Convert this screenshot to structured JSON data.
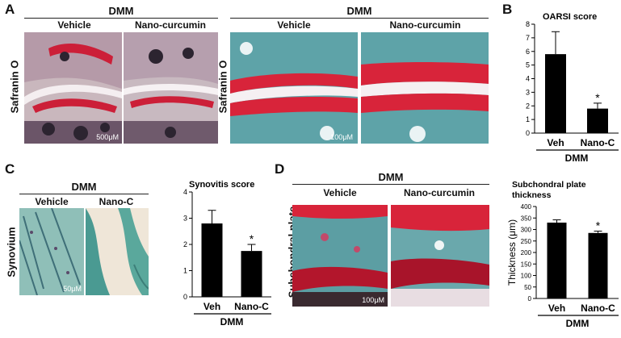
{
  "panels": {
    "A": {
      "letter": "A",
      "left_header": "DMM",
      "right_header": "DMM",
      "stain_label": "Safranin O",
      "vehicle": "Vehicle",
      "treatment": "Nano-curcumin",
      "scale_left": "500μM",
      "scale_right": "100μM"
    },
    "B": {
      "letter": "B"
    },
    "C": {
      "letter": "C",
      "header": "DMM",
      "tissue_label": "Synovium",
      "vehicle": "Vehicle",
      "treatment": "Nano-C",
      "scale": "50μM"
    },
    "D": {
      "letter": "D",
      "header": "DMM",
      "tissue_label": "Subchondral plate",
      "vehicle": "Vehicle",
      "treatment": "Nano-curcumin",
      "scale": "100μM"
    }
  },
  "colors": {
    "bar": "#000000",
    "cartilage_red": "#d8243a",
    "bone_teal": "#4f9aa0",
    "tissue_pink": "#e9dde0"
  },
  "chart_data": [
    {
      "type": "bar",
      "title": "OARSI score",
      "categories": [
        "Veh",
        "Nano-C"
      ],
      "values": [
        5.8,
        1.8
      ],
      "errors": [
        1.65,
        0.4
      ],
      "significance": [
        "",
        "*"
      ],
      "group_label": "DMM",
      "ylim": [
        0,
        8
      ],
      "yticks": [
        0,
        1,
        2,
        3,
        4,
        5,
        6,
        7,
        8
      ]
    },
    {
      "type": "bar",
      "title": "Synovitis score",
      "categories": [
        "Veh",
        "Nano-C"
      ],
      "values": [
        2.8,
        1.75
      ],
      "errors": [
        0.5,
        0.25
      ],
      "significance": [
        "",
        "*"
      ],
      "group_label": "DMM",
      "ylim": [
        0,
        4
      ],
      "yticks": [
        0,
        1,
        2,
        3,
        4
      ]
    },
    {
      "type": "bar",
      "title": "Subchondral plate thickness",
      "ylabel": "Thickness (μm)",
      "categories": [
        "Veh",
        "Nano-C"
      ],
      "values": [
        330,
        285
      ],
      "errors": [
        12,
        8
      ],
      "significance": [
        "",
        "*"
      ],
      "group_label": "DMM",
      "ylim": [
        0,
        400
      ],
      "yticks": [
        0,
        50,
        100,
        150,
        200,
        250,
        300,
        350,
        400
      ]
    }
  ]
}
